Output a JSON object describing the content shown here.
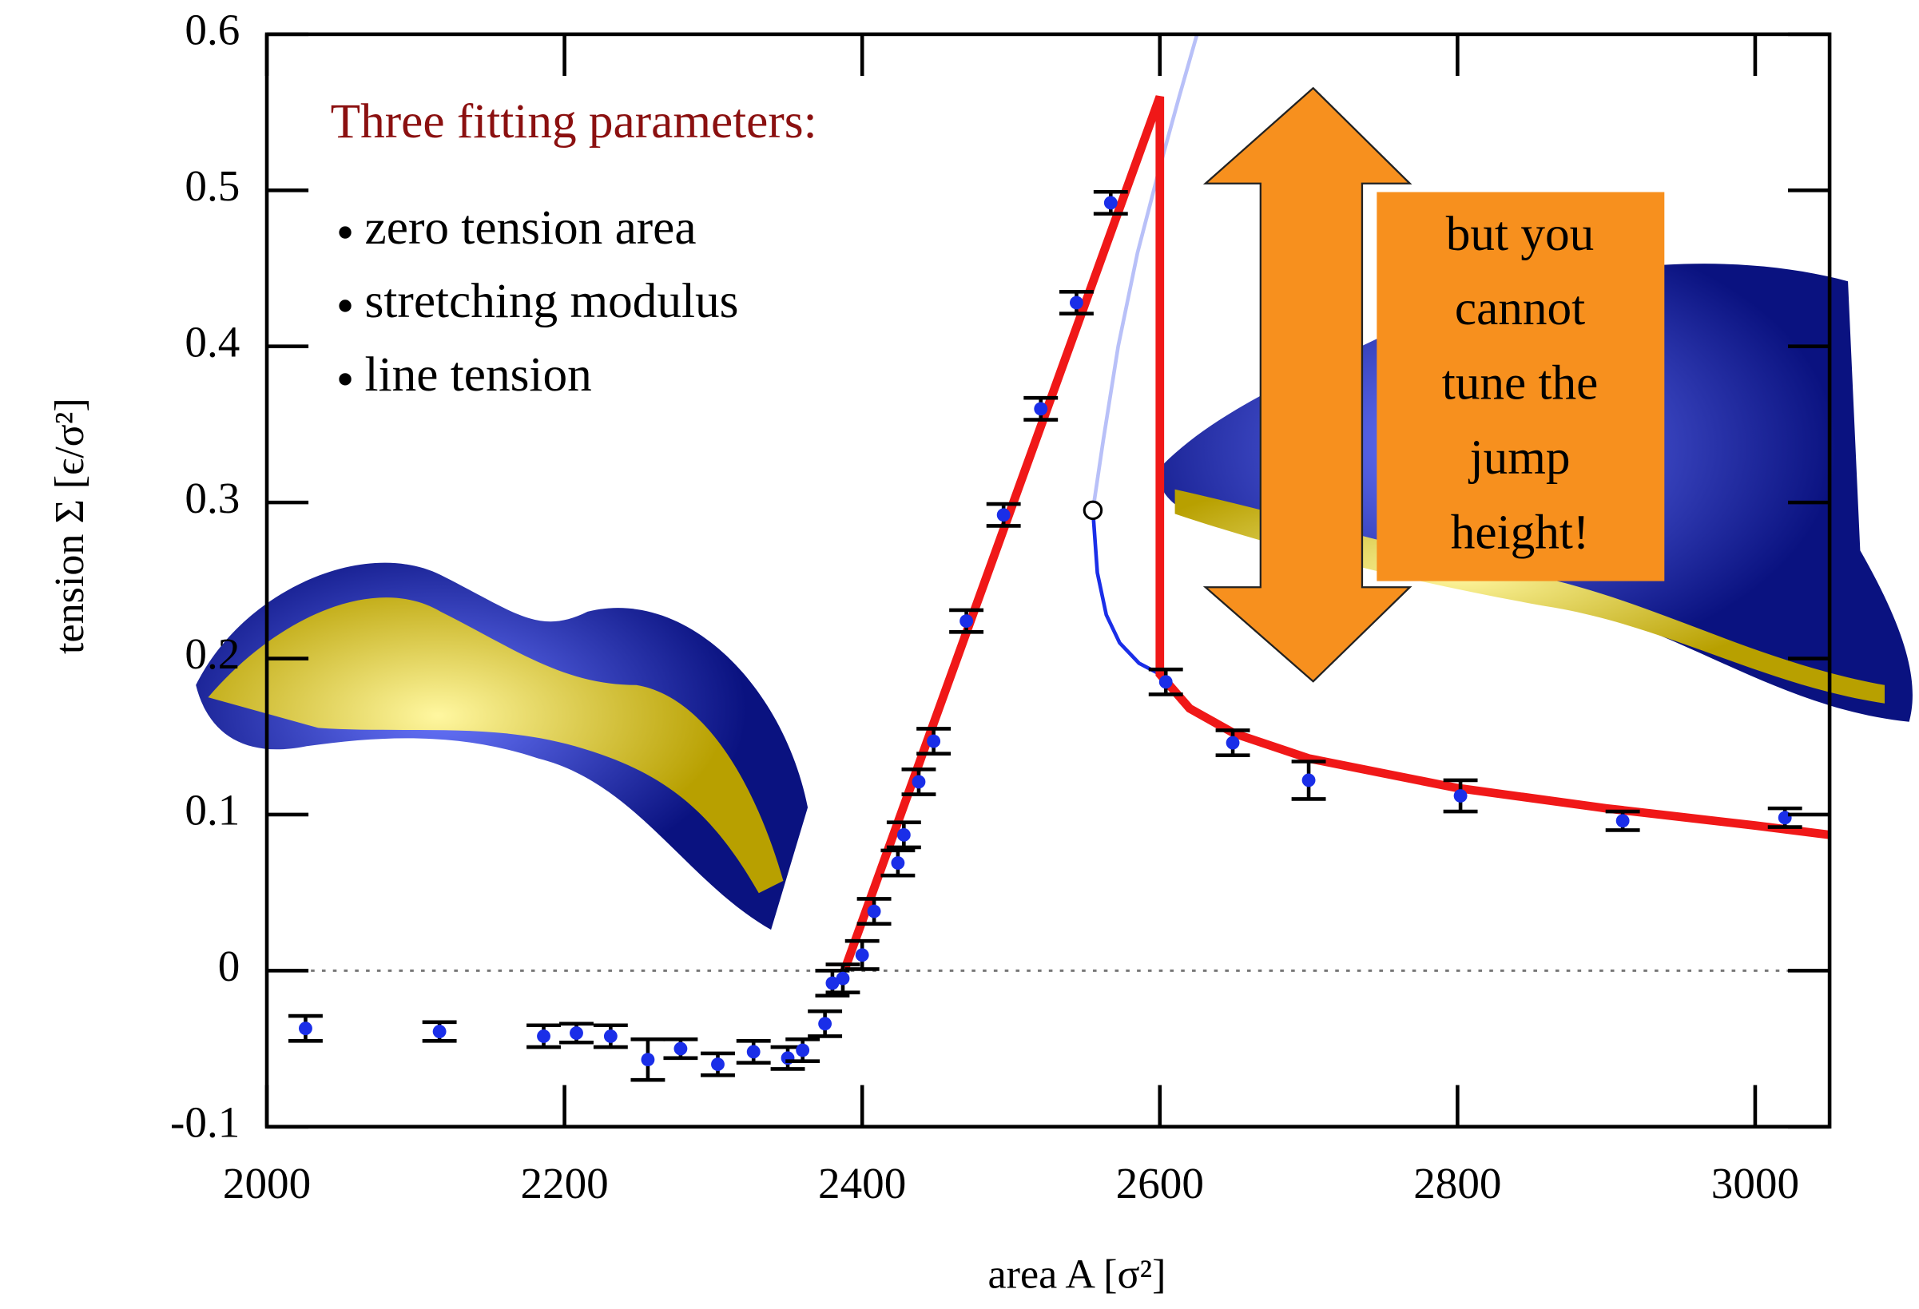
{
  "chart_data": {
    "type": "scatter",
    "x_label": "area A  [σ²]",
    "y_label": "tension Σ  [ϵ/σ²]",
    "xlim": [
      2000,
      3050
    ],
    "ylim": [
      -0.1,
      0.6
    ],
    "xticks": [
      2000,
      2200,
      2400,
      2600,
      2800,
      3000
    ],
    "yticks": [
      -0.1,
      0,
      0.1,
      0.2,
      0.3,
      0.4,
      0.5,
      0.6
    ],
    "hline": 0,
    "points": {
      "color": "#1a2ee8",
      "x": [
        2026,
        2116,
        2186,
        2208,
        2231,
        2256,
        2278,
        2303,
        2327,
        2350,
        2360,
        2375,
        2380,
        2387,
        2400,
        2408,
        2424,
        2428,
        2438,
        2448,
        2470,
        2495,
        2520,
        2544,
        2567,
        2604,
        2649,
        2700,
        2802,
        2911,
        3020
      ],
      "y": [
        -0.037,
        -0.039,
        -0.042,
        -0.04,
        -0.042,
        -0.057,
        -0.05,
        -0.06,
        -0.052,
        -0.056,
        -0.051,
        -0.034,
        -0.008,
        -0.005,
        0.01,
        0.038,
        0.069,
        0.087,
        0.121,
        0.147,
        0.224,
        0.292,
        0.36,
        0.428,
        0.492,
        0.185,
        0.146,
        0.122,
        0.112,
        0.096,
        0.098
      ],
      "errors": [
        0.008,
        0.006,
        0.007,
        0.006,
        0.007,
        0.013,
        0.006,
        0.007,
        0.007,
        0.007,
        0.007,
        0.008,
        0.008,
        0.009,
        0.009,
        0.008,
        0.008,
        0.008,
        0.008,
        0.008,
        0.007,
        0.007,
        0.007,
        0.007,
        0.007,
        0.008,
        0.008,
        0.012,
        0.01,
        0.006,
        0.006
      ]
    },
    "fit_lines": [
      {
        "color": "#b8c0f8",
        "width": 3,
        "x": [
          2555,
          2562,
          2572,
          2585,
          2600,
          2613,
          2625
        ],
        "y": [
          0.295,
          0.34,
          0.4,
          0.46,
          0.515,
          0.56,
          0.6
        ]
      },
      {
        "color": "#1a2ee8",
        "width": 3,
        "x": [
          2555,
          2558,
          2564,
          2573,
          2586,
          2600
        ],
        "y": [
          0.295,
          0.255,
          0.228,
          0.21,
          0.197,
          0.19
        ]
      },
      {
        "color": "#f01818",
        "width": 7,
        "x": [
          2388,
          2600,
          2600,
          2620,
          2650,
          2700,
          2800,
          2900,
          3000,
          3050
        ],
        "y": [
          0,
          0.56,
          0.19,
          0.168,
          0.152,
          0.136,
          0.117,
          0.104,
          0.093,
          0.087
        ]
      }
    ],
    "open_marker": {
      "x": 2555,
      "y": 0.295
    },
    "annotation_title": "Three fitting parameters:",
    "annotation_items": [
      "zero tension area",
      "stretching modulus",
      "line tension"
    ],
    "callout_lines": [
      "but you",
      "cannot",
      "tune the",
      "jump",
      "height!"
    ]
  }
}
